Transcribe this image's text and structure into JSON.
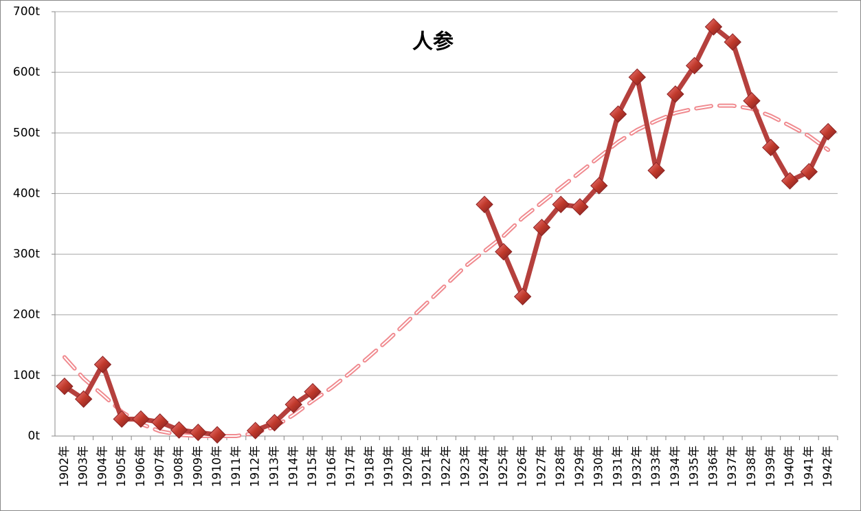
{
  "chart_data": {
    "type": "line",
    "title": "人参",
    "categories": [
      "1902年",
      "1903年",
      "1904年",
      "1905年",
      "1906年",
      "1907年",
      "1908年",
      "1909年",
      "1910年",
      "1911年",
      "1912年",
      "1913年",
      "1914年",
      "1915年",
      "1916年",
      "1917年",
      "1918年",
      "1919年",
      "1920年",
      "1921年",
      "1922年",
      "1923年",
      "1924年",
      "1925年",
      "1926年",
      "1927年",
      "1928年",
      "1929年",
      "1930年",
      "1931年",
      "1932年",
      "1933年",
      "1934年",
      "1935年",
      "1936年",
      "1937年",
      "1938年",
      "1939年",
      "1940年",
      "1941年",
      "1942年"
    ],
    "series": [
      {
        "color": "#b5403d",
        "values": [
          82,
          61,
          118,
          28,
          28,
          23,
          10,
          6,
          2,
          null,
          9,
          22,
          52,
          73,
          null,
          null,
          null,
          null,
          null,
          null,
          null,
          null,
          382,
          304,
          230,
          344,
          382,
          378,
          413,
          531,
          592,
          438,
          564,
          611,
          675,
          650,
          553,
          476,
          421,
          436,
          502
        ]
      }
    ],
    "trendline": {
      "color": "#f08a8f",
      "values": [
        130,
        95,
        68,
        40,
        20,
        8,
        2,
        0,
        0,
        0,
        5,
        15,
        35,
        58,
        80,
        105,
        132,
        160,
        190,
        220,
        250,
        280,
        305,
        330,
        360,
        385,
        410,
        435,
        460,
        485,
        505,
        520,
        533,
        540,
        545,
        545,
        540,
        528,
        512,
        495,
        472
      ]
    },
    "ylim": [
      0,
      700
    ],
    "yticks": [
      {
        "value": 0,
        "label": "0t"
      },
      {
        "value": 100,
        "label": "100t"
      },
      {
        "value": 200,
        "label": "200t"
      },
      {
        "value": 300,
        "label": "300t"
      },
      {
        "value": 400,
        "label": "400t"
      },
      {
        "value": 500,
        "label": "500t"
      },
      {
        "value": 600,
        "label": "600t"
      },
      {
        "value": 700,
        "label": "700t"
      }
    ],
    "grid": true
  }
}
